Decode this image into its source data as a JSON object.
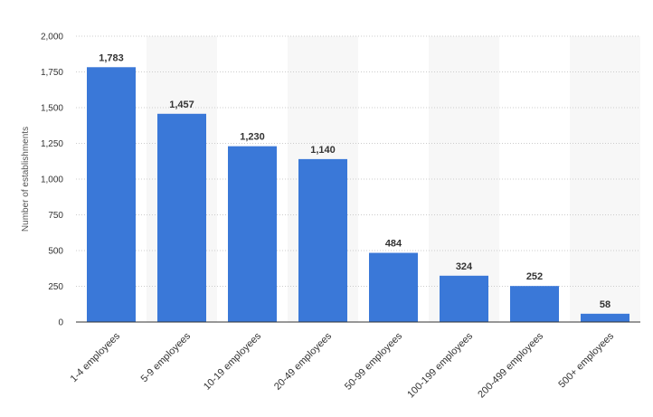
{
  "chart_data": {
    "type": "bar",
    "title": "",
    "xlabel": "",
    "ylabel": "Number of establishments",
    "categories": [
      "1-4 employees",
      "5-9 employees",
      "10-19 employees",
      "20-49 employees",
      "50-99 employees",
      "100-199 employees",
      "200-499 employees",
      "500+ employees"
    ],
    "values": [
      1783,
      1457,
      1230,
      1140,
      484,
      324,
      252,
      58
    ],
    "value_labels": [
      "1,783",
      "1,457",
      "1,230",
      "1,140",
      "484",
      "324",
      "252",
      "58"
    ],
    "ylim": [
      0,
      2000
    ],
    "yticks": [
      0,
      250,
      500,
      750,
      1000,
      1250,
      1500,
      1750,
      2000
    ],
    "ytick_labels": [
      "0",
      "250",
      "500",
      "750",
      "1,000",
      "1,250",
      "1,500",
      "1,750",
      "2,000"
    ],
    "grid": true,
    "bar_color": "#3a78d8",
    "band_color": "#f7f7f7",
    "gridline_color": "#cccccc"
  }
}
